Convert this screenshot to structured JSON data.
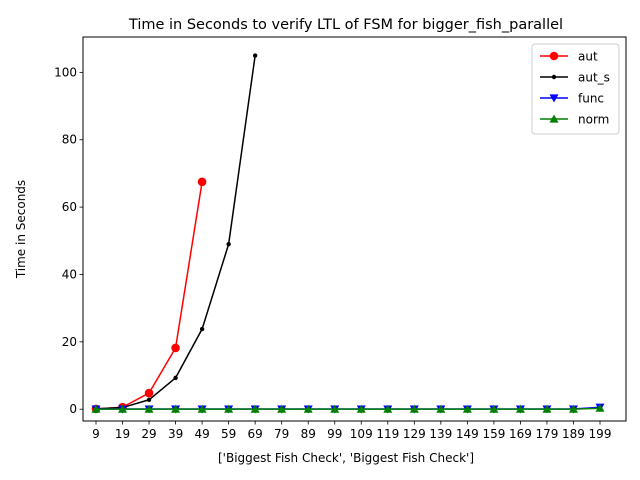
{
  "chart_data": {
    "type": "line",
    "title": "Time in Seconds to verify LTL of FSM for bigger_fish_parallel",
    "xlabel": "['Biggest Fish Check', 'Biggest Fish Check']",
    "ylabel": "Time in Seconds",
    "x": [
      9,
      19,
      29,
      39,
      49,
      59,
      69,
      79,
      89,
      99,
      109,
      119,
      129,
      139,
      149,
      159,
      169,
      179,
      189,
      199
    ],
    "ylim": [
      -3.5,
      110.5
    ],
    "yticks": [
      0,
      20,
      40,
      60,
      80,
      100
    ],
    "grid": false,
    "legend_position": "top-right",
    "series": [
      {
        "name": "aut",
        "color": "#ff0000",
        "marker": "circle",
        "values": [
          0.1,
          0.6,
          4.8,
          18.2,
          67.5,
          null,
          null,
          null,
          null,
          null,
          null,
          null,
          null,
          null,
          null,
          null,
          null,
          null,
          null,
          null
        ]
      },
      {
        "name": "aut_s",
        "color": "#000000",
        "marker": "point",
        "values": [
          0.1,
          0.5,
          2.8,
          9.3,
          23.8,
          49.0,
          105.0,
          null,
          null,
          null,
          null,
          null,
          null,
          null,
          null,
          null,
          null,
          null,
          null,
          null
        ]
      },
      {
        "name": "func",
        "color": "#0000ff",
        "marker": "triangle-down",
        "values": [
          0.05,
          0.05,
          0.05,
          0.05,
          0.05,
          0.05,
          0.05,
          0.05,
          0.05,
          0.05,
          0.05,
          0.05,
          0.05,
          0.05,
          0.05,
          0.05,
          0.05,
          0.05,
          0.05,
          0.6
        ]
      },
      {
        "name": "norm",
        "color": "#008000",
        "marker": "triangle-up",
        "values": [
          0.02,
          0.02,
          0.02,
          0.02,
          0.02,
          0.02,
          0.02,
          0.02,
          0.02,
          0.02,
          0.02,
          0.02,
          0.02,
          0.02,
          0.02,
          0.02,
          0.02,
          0.02,
          0.02,
          0.3
        ]
      }
    ]
  }
}
